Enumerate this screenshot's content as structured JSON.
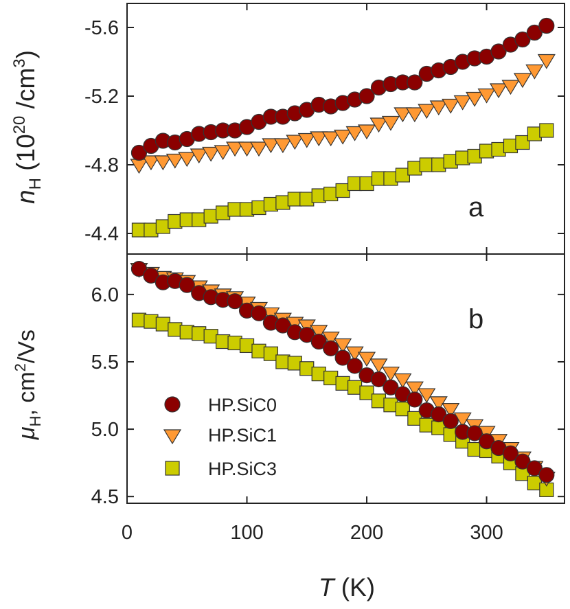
{
  "chart_data": [
    {
      "type": "scatter",
      "panel": "a",
      "panel_label": "a",
      "ylabel_symbol": "n",
      "ylabel_sub": "H",
      "ylabel_rest": " (10",
      "ylabel_sup": "20",
      "ylabel_rest2": " /cm",
      "ylabel_sup2": "3",
      "ylabel_close": ")",
      "ylim": [
        -4.28,
        -5.74
      ],
      "yticks": [
        -5.6,
        -5.2,
        -4.8,
        -4.4
      ],
      "ytick_labels": [
        "-5.6",
        "-5.2",
        "-4.8",
        "-4.4"
      ],
      "series": [
        {
          "name": "HP.SiC0",
          "marker": "circle",
          "color": "#8b0000",
          "x": [
            10,
            20,
            30,
            40,
            50,
            60,
            70,
            80,
            90,
            100,
            110,
            120,
            130,
            140,
            150,
            160,
            170,
            180,
            190,
            200,
            210,
            220,
            230,
            240,
            250,
            260,
            270,
            280,
            290,
            300,
            310,
            320,
            330,
            340,
            350
          ],
          "values": [
            -4.87,
            -4.91,
            -4.94,
            -4.93,
            -4.95,
            -4.98,
            -4.99,
            -5.0,
            -5.0,
            -5.02,
            -5.05,
            -5.08,
            -5.08,
            -5.1,
            -5.12,
            -5.15,
            -5.14,
            -5.16,
            -5.18,
            -5.2,
            -5.25,
            -5.27,
            -5.28,
            -5.28,
            -5.33,
            -5.35,
            -5.37,
            -5.4,
            -5.42,
            -5.43,
            -5.46,
            -5.5,
            -5.53,
            -5.57,
            -5.61
          ]
        },
        {
          "name": "HP.SiC1",
          "marker": "triangle-down",
          "color": "#ff9933",
          "x": [
            10,
            20,
            30,
            40,
            50,
            60,
            70,
            80,
            90,
            100,
            110,
            120,
            130,
            140,
            150,
            160,
            170,
            180,
            190,
            200,
            210,
            220,
            230,
            240,
            250,
            260,
            270,
            280,
            290,
            300,
            310,
            320,
            330,
            340,
            350
          ],
          "values": [
            -4.8,
            -4.82,
            -4.82,
            -4.83,
            -4.84,
            -4.86,
            -4.87,
            -4.88,
            -4.9,
            -4.9,
            -4.9,
            -4.92,
            -4.92,
            -4.94,
            -4.95,
            -4.96,
            -4.96,
            -4.97,
            -4.99,
            -5.0,
            -5.04,
            -5.05,
            -5.1,
            -5.1,
            -5.12,
            -5.14,
            -5.15,
            -5.17,
            -5.19,
            -5.21,
            -5.24,
            -5.26,
            -5.3,
            -5.35,
            -5.41
          ]
        },
        {
          "name": "HP.SiC3",
          "marker": "square",
          "color": "#cccc00",
          "x": [
            10,
            20,
            30,
            40,
            50,
            60,
            70,
            80,
            90,
            100,
            110,
            120,
            130,
            140,
            150,
            160,
            170,
            180,
            190,
            200,
            210,
            220,
            230,
            240,
            250,
            260,
            270,
            280,
            290,
            300,
            310,
            320,
            330,
            340,
            350
          ],
          "values": [
            -4.42,
            -4.42,
            -4.44,
            -4.47,
            -4.48,
            -4.48,
            -4.5,
            -4.52,
            -4.54,
            -4.54,
            -4.55,
            -4.57,
            -4.58,
            -4.6,
            -4.6,
            -4.62,
            -4.63,
            -4.65,
            -4.69,
            -4.69,
            -4.72,
            -4.72,
            -4.74,
            -4.78,
            -4.8,
            -4.8,
            -4.82,
            -4.84,
            -4.85,
            -4.88,
            -4.89,
            -4.91,
            -4.93,
            -4.98,
            -5.0
          ]
        }
      ]
    },
    {
      "type": "scatter",
      "panel": "b",
      "panel_label": "b",
      "ylabel_symbol": "μ",
      "ylabel_sub": "H",
      "ylabel_rest": ", cm",
      "ylabel_sup": "2",
      "ylabel_rest2": "/Vs",
      "ylim": [
        4.45,
        6.3
      ],
      "yticks": [
        4.5,
        5.0,
        5.5,
        6.0
      ],
      "ytick_labels": [
        "4.5",
        "5.0",
        "5.5",
        "6.0"
      ],
      "series": [
        {
          "name": "HP.SiC0",
          "marker": "circle",
          "color": "#8b0000",
          "x": [
            10,
            20,
            30,
            40,
            50,
            60,
            70,
            80,
            90,
            100,
            110,
            120,
            130,
            140,
            150,
            160,
            170,
            180,
            190,
            200,
            210,
            220,
            230,
            240,
            250,
            260,
            270,
            280,
            290,
            300,
            310,
            320,
            330,
            340,
            350
          ],
          "values": [
            6.19,
            6.14,
            6.09,
            6.1,
            6.07,
            6.01,
            5.98,
            5.96,
            5.95,
            5.88,
            5.86,
            5.79,
            5.77,
            5.72,
            5.7,
            5.65,
            5.6,
            5.53,
            5.47,
            5.4,
            5.37,
            5.31,
            5.26,
            5.22,
            5.14,
            5.11,
            5.06,
            4.98,
            4.97,
            4.91,
            4.86,
            4.82,
            4.76,
            4.71,
            4.66
          ]
        },
        {
          "name": "HP.SiC1",
          "marker": "triangle-down",
          "color": "#ff9933",
          "x": [
            10,
            20,
            30,
            40,
            50,
            60,
            70,
            80,
            90,
            100,
            110,
            120,
            130,
            140,
            150,
            160,
            170,
            180,
            190,
            200,
            210,
            220,
            230,
            240,
            250,
            260,
            270,
            280,
            290,
            300,
            310,
            320,
            330,
            340,
            350
          ],
          "values": [
            6.19,
            6.16,
            6.13,
            6.12,
            6.1,
            6.06,
            6.03,
            6.0,
            5.98,
            5.94,
            5.9,
            5.86,
            5.82,
            5.79,
            5.77,
            5.73,
            5.68,
            5.63,
            5.57,
            5.53,
            5.48,
            5.42,
            5.37,
            5.31,
            5.26,
            5.2,
            5.15,
            5.08,
            5.03,
            4.98,
            4.92,
            4.86,
            4.79,
            4.72,
            4.64
          ]
        },
        {
          "name": "HP.SiC3",
          "marker": "square",
          "color": "#cccc00",
          "x": [
            10,
            20,
            30,
            40,
            50,
            60,
            70,
            80,
            90,
            100,
            110,
            120,
            130,
            140,
            150,
            160,
            170,
            180,
            190,
            200,
            210,
            220,
            230,
            240,
            250,
            260,
            270,
            280,
            290,
            300,
            310,
            320,
            330,
            340,
            350
          ],
          "values": [
            5.81,
            5.8,
            5.78,
            5.74,
            5.72,
            5.71,
            5.69,
            5.65,
            5.64,
            5.62,
            5.58,
            5.56,
            5.5,
            5.49,
            5.45,
            5.41,
            5.38,
            5.34,
            5.31,
            5.27,
            5.21,
            5.18,
            5.15,
            5.08,
            5.03,
            5.01,
            4.96,
            4.91,
            4.85,
            4.84,
            4.8,
            4.75,
            4.67,
            4.6,
            4.55
          ]
        }
      ]
    }
  ],
  "xaxis": {
    "xlim": [
      0,
      365
    ],
    "xticks": [
      0,
      100,
      200,
      300
    ],
    "xtick_labels": [
      "0",
      "100",
      "200",
      "300"
    ],
    "xlabel_symbol": "T",
    "xlabel_rest": " (K)"
  },
  "legend": {
    "placement": "lower-left of panel b",
    "entries": [
      "HP.SiC0",
      "HP.SiC1",
      "HP.SiC3"
    ]
  }
}
